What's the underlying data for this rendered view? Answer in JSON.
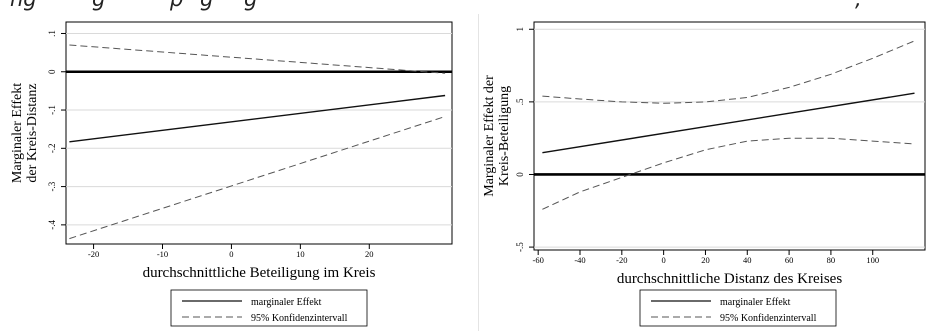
{
  "caption_fragments": [
    "ng",
    "g",
    "p",
    "g",
    "g",
    ","
  ],
  "chart_data": [
    {
      "type": "line",
      "title": "",
      "xlabel": "durchschnittliche Beteiligung im Kreis",
      "ylabel_lines": [
        "Marginaler Effekt",
        "der Kreis-Distanz"
      ],
      "xlim": [
        -24,
        32
      ],
      "ylim": [
        -0.45,
        0.13
      ],
      "xticks": [
        -20,
        -10,
        0,
        10,
        20
      ],
      "yticks": [
        0.1,
        0,
        -0.1,
        -0.2,
        -0.3,
        -0.4
      ],
      "ytick_labels": [
        ".1",
        "0",
        "-.1",
        "-.2",
        "-.3",
        "-.4"
      ],
      "grid": "horizontal",
      "reference_line": 0,
      "legend_position": "bottom",
      "series": [
        {
          "name": "marginaler Effekt",
          "style": "solid",
          "x": [
            -23.5,
            31
          ],
          "y": [
            -0.183,
            -0.062
          ]
        },
        {
          "name": "95% Konfidenzintervall",
          "style": "dashed",
          "x": [
            -23.5,
            31
          ],
          "y": [
            0.07,
            -0.004
          ]
        },
        {
          "name": "95% Konfidenzintervall",
          "style": "dashed",
          "x": [
            -23.5,
            31
          ],
          "y": [
            -0.436,
            -0.117
          ]
        }
      ]
    },
    {
      "type": "line",
      "title": "",
      "xlabel": "durchschnittliche Distanz des Kreises",
      "ylabel_lines": [
        "Marginaler Effekt der",
        "Kreis-Beteiligung"
      ],
      "xlim": [
        -62,
        125
      ],
      "ylim": [
        -0.52,
        1.05
      ],
      "xticks": [
        -60,
        -40,
        -20,
        0,
        20,
        40,
        60,
        80,
        100
      ],
      "yticks": [
        1,
        0.5,
        0,
        -0.5
      ],
      "ytick_labels": [
        "1",
        ".5",
        "0",
        "-.5"
      ],
      "grid": "horizontal",
      "reference_line": 0,
      "legend_position": "bottom",
      "series": [
        {
          "name": "marginaler Effekt",
          "style": "solid",
          "x": [
            -58,
            120
          ],
          "y": [
            0.15,
            0.56
          ]
        },
        {
          "name": "95% Konfidenzintervall",
          "style": "dashed",
          "x": [
            -58,
            -40,
            -20,
            0,
            20,
            40,
            60,
            80,
            100,
            120
          ],
          "y": [
            0.54,
            0.52,
            0.5,
            0.49,
            0.5,
            0.53,
            0.6,
            0.69,
            0.8,
            0.92
          ]
        },
        {
          "name": "95% Konfidenzintervall",
          "style": "dashed",
          "x": [
            -58,
            -40,
            -20,
            0,
            20,
            40,
            60,
            80,
            100,
            120
          ],
          "y": [
            -0.24,
            -0.12,
            -0.02,
            0.08,
            0.17,
            0.23,
            0.25,
            0.25,
            0.23,
            0.21
          ]
        }
      ]
    }
  ],
  "legend": {
    "solid_label": "marginaler Effekt",
    "dashed_label": "95% Konfidenzintervall"
  }
}
